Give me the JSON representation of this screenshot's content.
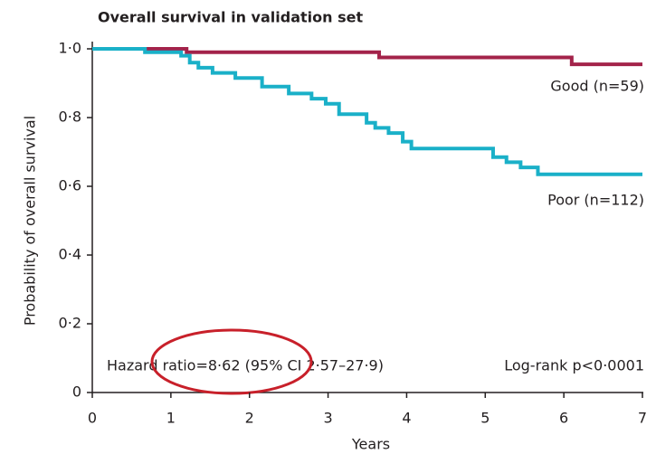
{
  "chart_data": {
    "type": "line",
    "title": "Overall survival in validation set",
    "y_label": "Probability of overall survival",
    "x_label": "Years",
    "annotations": [
      "Hazard ratio=8·62 (95% CI 2·57–27·9)",
      "Log-rank p<0·0001"
    ],
    "xlim": [
      0,
      7
    ],
    "ylim": [
      0,
      1.0
    ],
    "xticks": [
      0,
      1,
      2,
      3,
      4,
      5,
      6,
      7
    ],
    "yticks": [
      {
        "value": 0,
        "label": "0"
      },
      {
        "value": 0.2,
        "label": "0·2"
      },
      {
        "value": 0.4,
        "label": "0·4"
      },
      {
        "value": 0.6,
        "label": "0·6"
      },
      {
        "value": 0.8,
        "label": "0·8"
      },
      {
        "value": 1.0,
        "label": "1·0"
      }
    ],
    "grid": false,
    "series": [
      {
        "name": "Good (n=59)",
        "color": "#a3234a",
        "x": [
          0,
          1.2,
          1.2,
          3.65,
          3.65,
          6.1,
          6.1,
          7
        ],
        "values": [
          1,
          1,
          0.99,
          0.99,
          0.975,
          0.975,
          0.955,
          0.955
        ]
      },
      {
        "name": "Poor (n=112)",
        "color": "#1ab0c8",
        "x": [
          0,
          0.67,
          0.67,
          1.13,
          1.13,
          1.24,
          1.24,
          1.35,
          1.35,
          1.53,
          1.53,
          1.82,
          1.82,
          2.16,
          2.16,
          2.5,
          2.5,
          2.79,
          2.79,
          2.97,
          2.97,
          3.14,
          3.14,
          3.49,
          3.49,
          3.6,
          3.6,
          3.77,
          3.77,
          3.95,
          3.95,
          4.06,
          4.06,
          5.1,
          5.1,
          5.27,
          5.27,
          5.45,
          5.45,
          5.67,
          5.67,
          7
        ],
        "values": [
          1,
          1,
          0.99,
          0.99,
          0.98,
          0.98,
          0.96,
          0.96,
          0.945,
          0.945,
          0.93,
          0.93,
          0.915,
          0.915,
          0.89,
          0.89,
          0.87,
          0.87,
          0.855,
          0.855,
          0.84,
          0.84,
          0.81,
          0.81,
          0.785,
          0.785,
          0.77,
          0.77,
          0.755,
          0.755,
          0.73,
          0.73,
          0.71,
          0.71,
          0.685,
          0.685,
          0.67,
          0.67,
          0.655,
          0.655,
          0.635,
          0.635
        ]
      }
    ]
  }
}
